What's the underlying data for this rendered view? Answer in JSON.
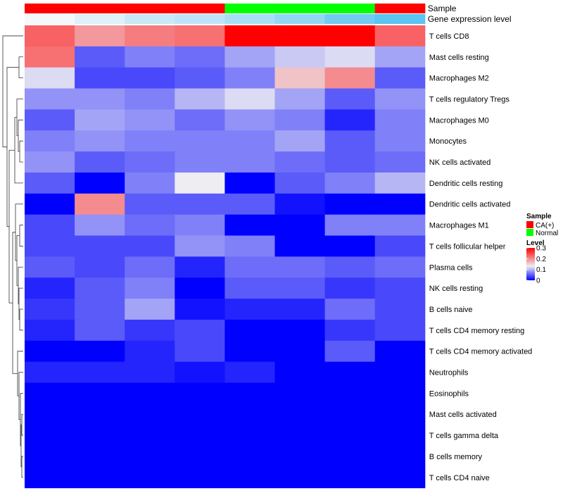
{
  "chart_data": {
    "type": "heatmap",
    "annotation_labels": [
      "Sample",
      "Gene expression level"
    ],
    "sample_annotation": [
      "CA(+)",
      "CA(+)",
      "CA(+)",
      "CA(+)",
      "Normal",
      "Normal",
      "Normal",
      "CA(+)"
    ],
    "expression_annotation": [
      0.02,
      0.04,
      0.06,
      0.07,
      0.09,
      0.11,
      0.14,
      0.16
    ],
    "rows": [
      "T cells CD8",
      "Mast cells resting",
      "Macrophages M2",
      "T cells regulatory  Tregs",
      "Macrophages M0",
      "Monocytes",
      "NK cells activated",
      "Dendritic cells resting",
      "Dendritic cells activated",
      "Macrophages M1",
      "T cells follicular helper",
      "Plasma cells",
      "NK cells resting",
      "B cells naive",
      "T cells CD4 memory resting",
      "T cells CD4 memory activated",
      "Neutrophils",
      "Eosinophils",
      "Mast cells activated",
      "T cells gamma delta",
      "B cells memory",
      "T cells CD4 naive"
    ],
    "values": [
      [
        0.23,
        0.19,
        0.21,
        0.22,
        0.3,
        0.3,
        0.3,
        0.23
      ],
      [
        0.22,
        0.05,
        0.07,
        0.06,
        0.09,
        0.11,
        0.12,
        0.09
      ],
      [
        0.12,
        0.04,
        0.04,
        0.05,
        0.07,
        0.16,
        0.2,
        0.05
      ],
      [
        0.08,
        0.08,
        0.07,
        0.1,
        0.12,
        0.09,
        0.05,
        0.08
      ],
      [
        0.05,
        0.09,
        0.08,
        0.06,
        0.08,
        0.07,
        0.02,
        0.07
      ],
      [
        0.07,
        0.08,
        0.07,
        0.07,
        0.07,
        0.09,
        0.05,
        0.07
      ],
      [
        0.08,
        0.05,
        0.06,
        0.07,
        0.07,
        0.06,
        0.05,
        0.06
      ],
      [
        0.05,
        0.0,
        0.07,
        0.13,
        0.0,
        0.05,
        0.07,
        0.1
      ],
      [
        0.0,
        0.2,
        0.05,
        0.05,
        0.05,
        0.01,
        0.0,
        0.0
      ],
      [
        0.04,
        0.08,
        0.06,
        0.07,
        0.0,
        0.0,
        0.07,
        0.07
      ],
      [
        0.04,
        0.04,
        0.04,
        0.08,
        0.07,
        0.0,
        0.0,
        0.04
      ],
      [
        0.05,
        0.04,
        0.06,
        0.02,
        0.06,
        0.06,
        0.05,
        0.06
      ],
      [
        0.02,
        0.05,
        0.07,
        0.0,
        0.05,
        0.05,
        0.03,
        0.04
      ],
      [
        0.03,
        0.05,
        0.09,
        0.01,
        0.02,
        0.02,
        0.06,
        0.04
      ],
      [
        0.02,
        0.05,
        0.03,
        0.04,
        0.0,
        0.0,
        0.03,
        0.04
      ],
      [
        0.0,
        0.0,
        0.02,
        0.04,
        0.0,
        0.0,
        0.05,
        0.0
      ],
      [
        0.02,
        0.02,
        0.02,
        0.01,
        0.02,
        0.0,
        0.0,
        0.0
      ],
      [
        0.0,
        0.0,
        0.0,
        0.0,
        0.0,
        0.0,
        0.0,
        0.0
      ],
      [
        0.0,
        0.0,
        0.0,
        0.0,
        0.0,
        0.0,
        0.0,
        0.0
      ],
      [
        0.0,
        0.0,
        0.0,
        0.0,
        0.0,
        0.0,
        0.0,
        0.0
      ],
      [
        0.0,
        0.0,
        0.0,
        0.0,
        0.0,
        0.0,
        0.0,
        0.0
      ],
      [
        0.0,
        0.0,
        0.0,
        0.0,
        0.0,
        0.0,
        0.0,
        0.0
      ]
    ],
    "color_scale": {
      "min": 0,
      "mid": 0.13,
      "max": 0.3,
      "colors": [
        "#0000ff",
        "#ededf2",
        "#ff0000"
      ]
    },
    "legend": {
      "placement": "right",
      "sample_title": "Sample",
      "sample_entries": [
        {
          "label": "CA(+)",
          "color": "#ff0000"
        },
        {
          "label": "Normal",
          "color": "#00ff00"
        }
      ],
      "level_title": "Level",
      "level_ticks": [
        0,
        0.1,
        0.2,
        0.3
      ]
    },
    "annotation_colors": {
      "expression_low": "#f4f8fb",
      "expression_high": "#5bc4f0"
    }
  }
}
